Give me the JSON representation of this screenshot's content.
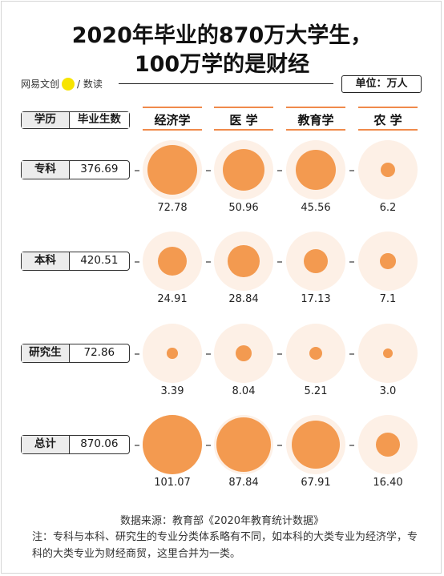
{
  "title_line1": "2020年毕业的870万大学生，",
  "title_line2": "100万学的是财经",
  "brand": {
    "name": "网易文创",
    "dot_text": "NetEase",
    "suffix": "/ 数读"
  },
  "unit": "单位：万人",
  "header": {
    "left": "学历",
    "right": "毕业生数"
  },
  "chart_data": {
    "type": "bubble-matrix",
    "columns": [
      "经济学",
      "医  学",
      "教育学",
      "农  学"
    ],
    "rows": [
      {
        "label": "专科",
        "total": "376.69",
        "values": [
          "72.78",
          "50.96",
          "45.56",
          "6.2"
        ]
      },
      {
        "label": "本科",
        "total": "420.51",
        "values": [
          "24.91",
          "28.84",
          "17.13",
          "7.1"
        ]
      },
      {
        "label": "研究生",
        "total": "72.86",
        "values": [
          "3.39",
          "8.04",
          "5.21",
          "3.0"
        ]
      },
      {
        "label": "总计",
        "total": "870.06",
        "values": [
          "101.07",
          "87.84",
          "67.91",
          "16.40"
        ]
      }
    ]
  },
  "source": "数据来源：教育部《2020年教育统计数据》",
  "note": "注：专科与本科、研究生的专业分类体系略有不同，如本科的大类专业为经济学，专科的大类专业为财经商贸，这里合并为一类。"
}
